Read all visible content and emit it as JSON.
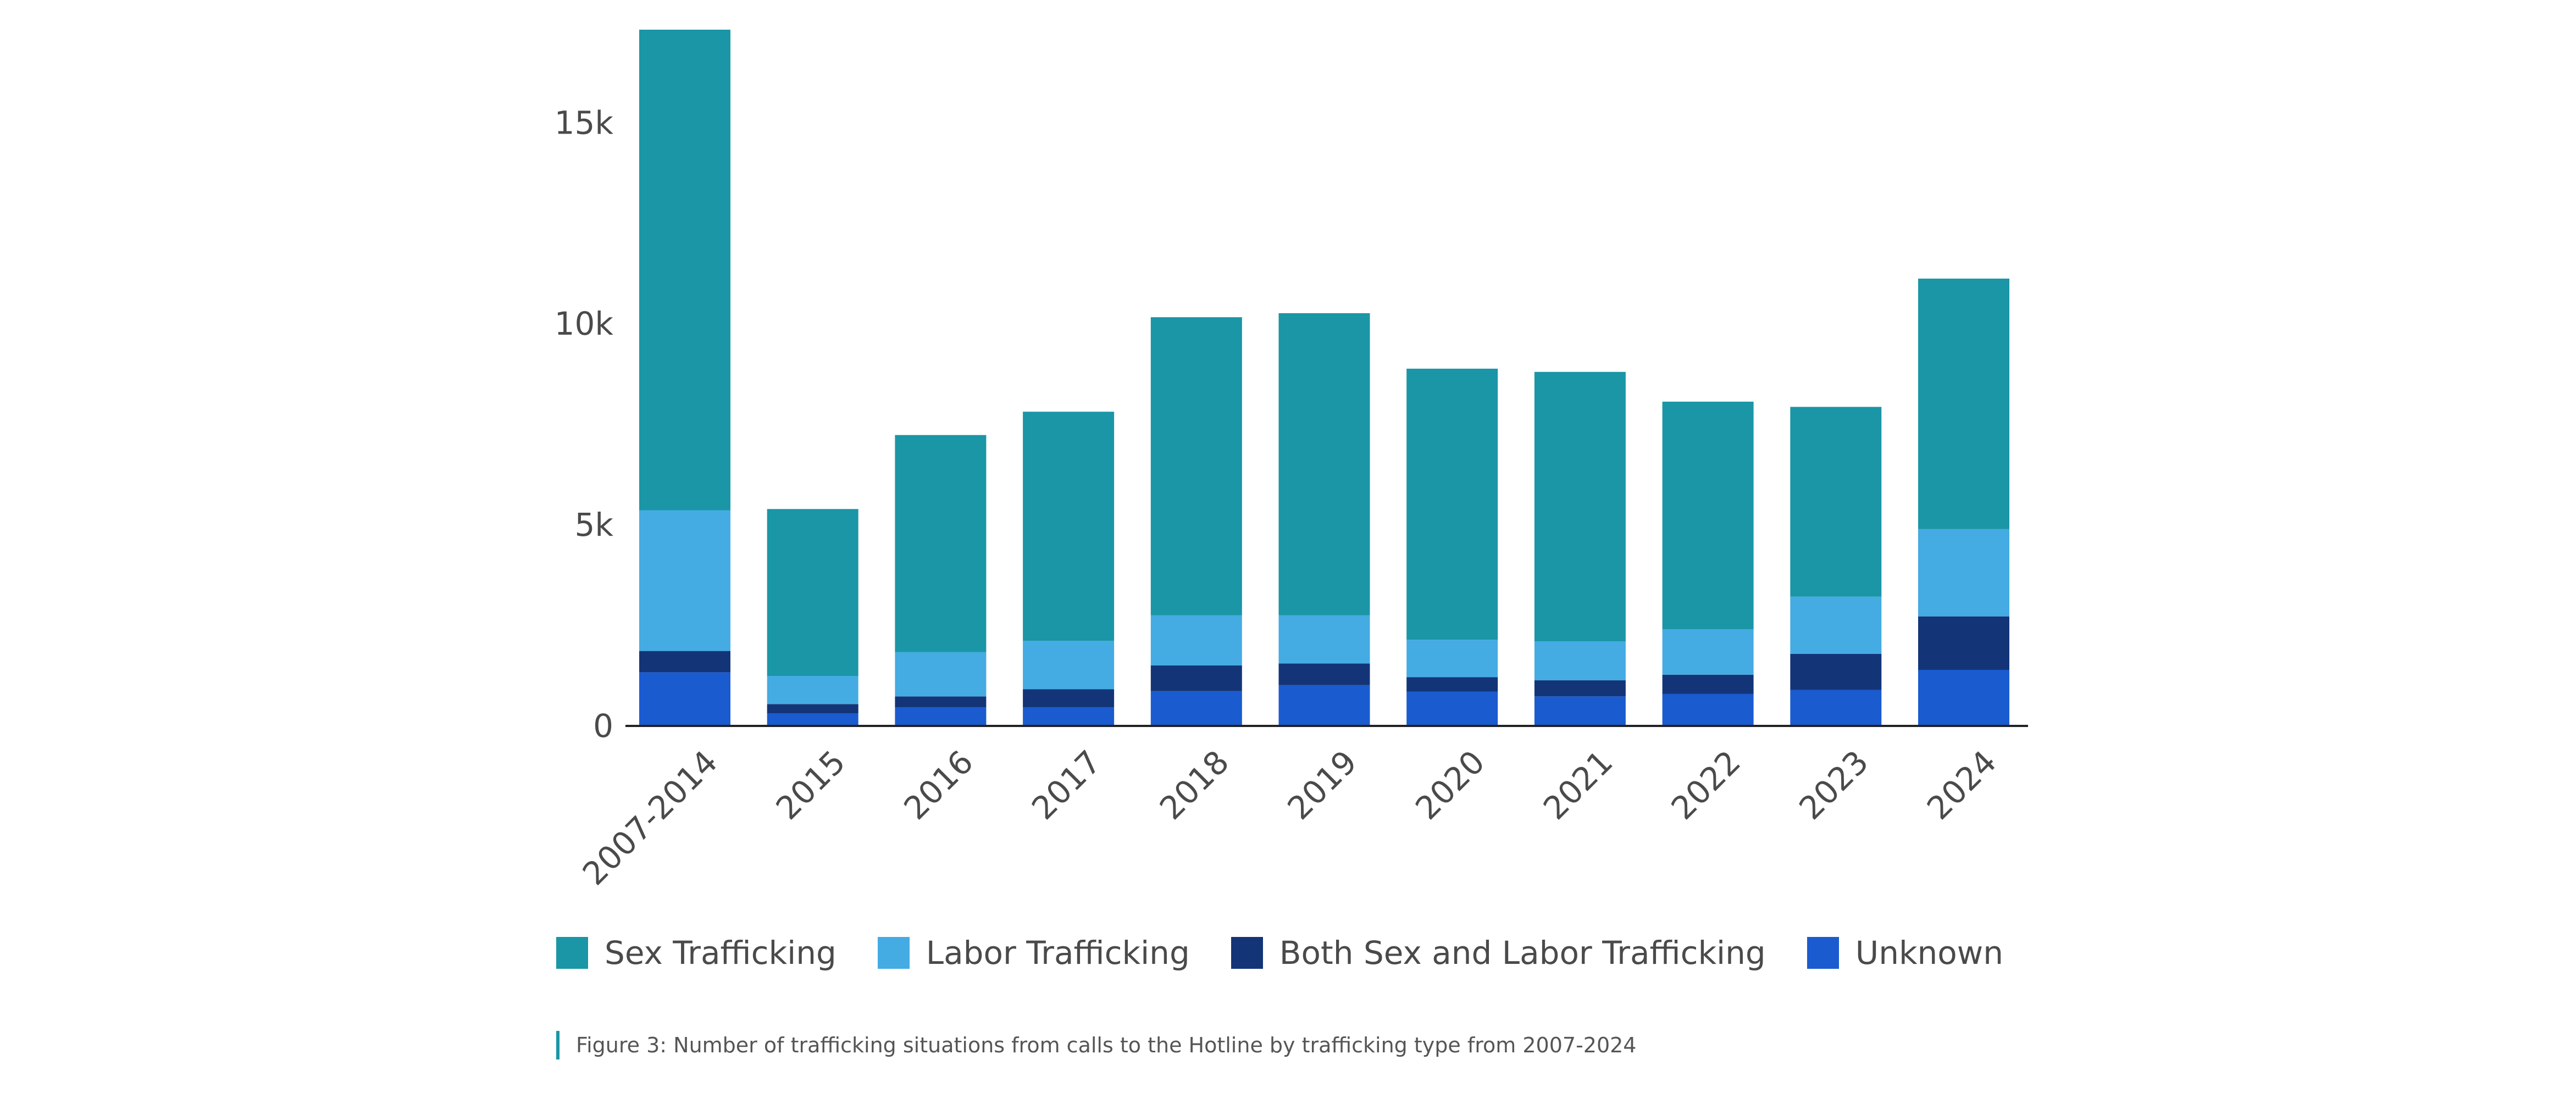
{
  "chart_data": {
    "type": "bar",
    "stacked": true,
    "categories": [
      "2007-2014",
      "2015",
      "2016",
      "2017",
      "2018",
      "2019",
      "2020",
      "2021",
      "2022",
      "2023",
      "2024"
    ],
    "series": [
      {
        "name": "Unknown",
        "color": "#1a5bd0",
        "values": [
          1320,
          300,
          450,
          450,
          850,
          1000,
          840,
          720,
          780,
          880,
          1380
        ]
      },
      {
        "name": "Both Sex and Labor Trafficking",
        "color": "#133578",
        "values": [
          530,
          230,
          270,
          450,
          640,
          540,
          360,
          400,
          480,
          900,
          1330
        ]
      },
      {
        "name": "Labor Trafficking",
        "color": "#45abe3",
        "values": [
          3500,
          700,
          1100,
          1200,
          1250,
          1200,
          930,
          970,
          1130,
          1420,
          2170
        ]
      },
      {
        "name": "Sex Trafficking",
        "color": "#1a96a6",
        "values": [
          11950,
          4150,
          5400,
          5700,
          7410,
          7510,
          6740,
          6700,
          5660,
          4720,
          6230
        ]
      }
    ],
    "totals": [
      17300,
      5380,
      7220,
      7800,
      10150,
      10250,
      8870,
      8790,
      8050,
      7920,
      11110
    ],
    "ylim": [
      0,
      17300
    ],
    "yticks": [
      0,
      5000,
      10000,
      15000
    ],
    "ytick_labels": [
      "0",
      "5k",
      "10k",
      "15k"
    ],
    "xlabel": "",
    "ylabel": "",
    "grid": false,
    "legend_position": "bottom-left",
    "legend_order": [
      "Sex Trafficking",
      "Labor Trafficking",
      "Both Sex and Labor Trafficking",
      "Unknown"
    ]
  },
  "caption": "Figure 3: Number of trafficking situations from calls to the Hotline by trafficking type from 2007-2024",
  "colors": {
    "axis": "#222222",
    "tick_text": "#4a4a4a",
    "caption_accent": "#1a96a6"
  }
}
